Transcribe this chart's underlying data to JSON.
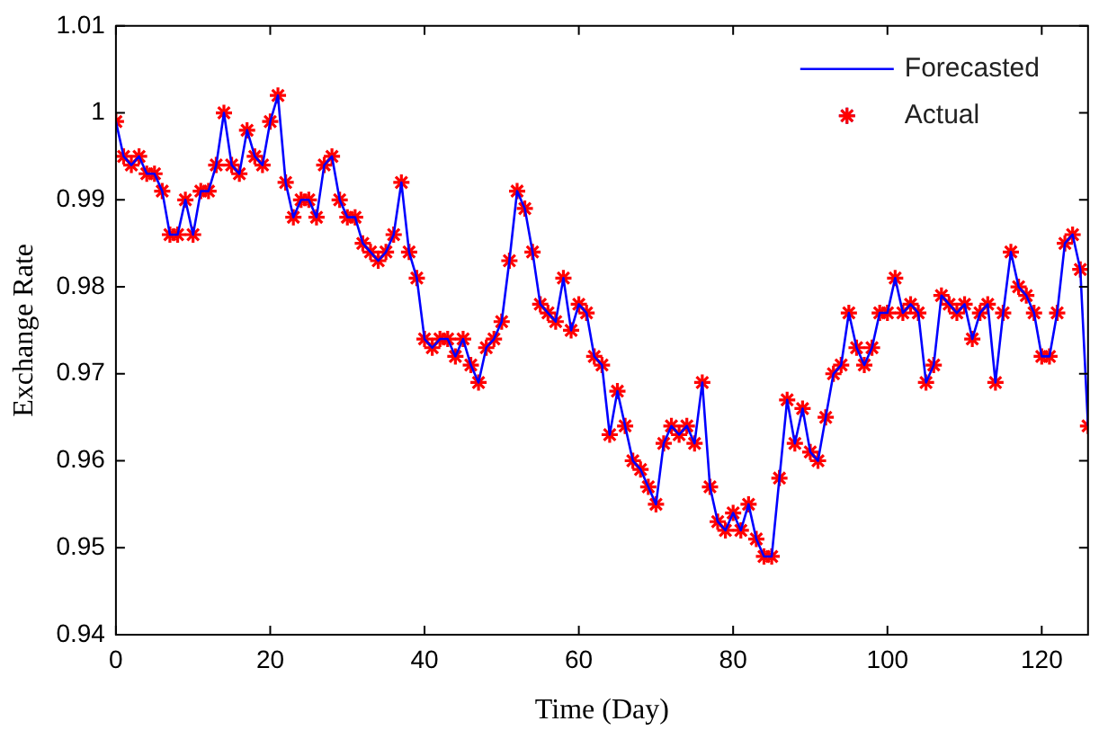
{
  "chart_data": {
    "type": "line",
    "xlabel": "Time (Day)",
    "ylabel": "Exchange Rate",
    "x": [
      0,
      1,
      2,
      3,
      4,
      5,
      6,
      7,
      8,
      9,
      10,
      11,
      12,
      13,
      14,
      15,
      16,
      17,
      18,
      19,
      20,
      21,
      22,
      23,
      24,
      25,
      26,
      27,
      28,
      29,
      30,
      31,
      32,
      33,
      34,
      35,
      36,
      37,
      38,
      39,
      40,
      41,
      42,
      43,
      44,
      45,
      46,
      47,
      48,
      49,
      50,
      51,
      52,
      53,
      54,
      55,
      56,
      57,
      58,
      59,
      60,
      61,
      62,
      63,
      64,
      65,
      66,
      67,
      68,
      69,
      70,
      71,
      72,
      73,
      74,
      75,
      76,
      77,
      78,
      79,
      80,
      81,
      82,
      83,
      84,
      85,
      86,
      87,
      88,
      89,
      90,
      91,
      92,
      93,
      94,
      95,
      96,
      97,
      98,
      99,
      100,
      101,
      102,
      103,
      104,
      105,
      106,
      107,
      108,
      109,
      110,
      111,
      112,
      113,
      114,
      115,
      116,
      117,
      118,
      119,
      120,
      121,
      122,
      123,
      124,
      125,
      126
    ],
    "series": [
      {
        "name": "Forecasted",
        "type": "line",
        "color": "#0000ff",
        "marker": "none",
        "values": [
          0.999,
          0.995,
          0.994,
          0.995,
          0.993,
          0.993,
          0.991,
          0.986,
          0.986,
          0.99,
          0.986,
          0.991,
          0.991,
          0.994,
          1.0,
          0.994,
          0.993,
          0.998,
          0.995,
          0.994,
          0.999,
          1.002,
          0.992,
          0.988,
          0.99,
          0.99,
          0.988,
          0.994,
          0.995,
          0.99,
          0.988,
          0.988,
          0.985,
          0.984,
          0.983,
          0.984,
          0.986,
          0.992,
          0.984,
          0.981,
          0.974,
          0.973,
          0.974,
          0.974,
          0.972,
          0.974,
          0.971,
          0.969,
          0.973,
          0.974,
          0.976,
          0.983,
          0.991,
          0.989,
          0.984,
          0.978,
          0.977,
          0.976,
          0.981,
          0.975,
          0.978,
          0.977,
          0.972,
          0.971,
          0.963,
          0.968,
          0.964,
          0.96,
          0.959,
          0.957,
          0.955,
          0.962,
          0.964,
          0.963,
          0.964,
          0.962,
          0.969,
          0.957,
          0.953,
          0.952,
          0.954,
          0.952,
          0.955,
          0.951,
          0.949,
          0.949,
          0.958,
          0.967,
          0.962,
          0.966,
          0.961,
          0.96,
          0.965,
          0.97,
          0.971,
          0.977,
          0.973,
          0.971,
          0.973,
          0.977,
          0.977,
          0.981,
          0.977,
          0.978,
          0.977,
          0.969,
          0.971,
          0.979,
          0.978,
          0.977,
          0.978,
          0.974,
          0.977,
          0.978,
          0.969,
          0.977,
          0.984,
          0.98,
          0.979,
          0.977,
          0.972,
          0.972,
          0.977,
          0.985,
          0.986,
          0.982,
          0.964
        ]
      },
      {
        "name": "Actual",
        "type": "scatter",
        "color": "#ff0000",
        "marker": "cross",
        "values": [
          0.999,
          0.995,
          0.994,
          0.995,
          0.993,
          0.993,
          0.991,
          0.986,
          0.986,
          0.99,
          0.986,
          0.991,
          0.991,
          0.994,
          1.0,
          0.994,
          0.993,
          0.998,
          0.995,
          0.994,
          0.999,
          1.002,
          0.992,
          0.988,
          0.99,
          0.99,
          0.988,
          0.994,
          0.995,
          0.99,
          0.988,
          0.988,
          0.985,
          0.984,
          0.983,
          0.984,
          0.986,
          0.992,
          0.984,
          0.981,
          0.974,
          0.973,
          0.974,
          0.974,
          0.972,
          0.974,
          0.971,
          0.969,
          0.973,
          0.974,
          0.976,
          0.983,
          0.991,
          0.989,
          0.984,
          0.978,
          0.977,
          0.976,
          0.981,
          0.975,
          0.978,
          0.977,
          0.972,
          0.971,
          0.963,
          0.968,
          0.964,
          0.96,
          0.959,
          0.957,
          0.955,
          0.962,
          0.964,
          0.963,
          0.964,
          0.962,
          0.969,
          0.957,
          0.953,
          0.952,
          0.954,
          0.952,
          0.955,
          0.951,
          0.949,
          0.949,
          0.958,
          0.967,
          0.962,
          0.966,
          0.961,
          0.96,
          0.965,
          0.97,
          0.971,
          0.977,
          0.973,
          0.971,
          0.973,
          0.977,
          0.977,
          0.981,
          0.977,
          0.978,
          0.977,
          0.969,
          0.971,
          0.979,
          0.978,
          0.977,
          0.978,
          0.974,
          0.977,
          0.978,
          0.969,
          0.977,
          0.984,
          0.98,
          0.979,
          0.977,
          0.972,
          0.972,
          0.977,
          0.985,
          0.986,
          0.982,
          0.964
        ]
      }
    ],
    "xlim": [
      0,
      126
    ],
    "xticks": [
      0,
      20,
      40,
      60,
      80,
      100,
      120
    ],
    "ylim": [
      0.94,
      1.01
    ],
    "yticks": [
      0.94,
      0.95,
      0.96,
      0.97,
      0.98,
      0.99,
      1,
      1.01
    ],
    "grid": false,
    "legend": "top right"
  }
}
